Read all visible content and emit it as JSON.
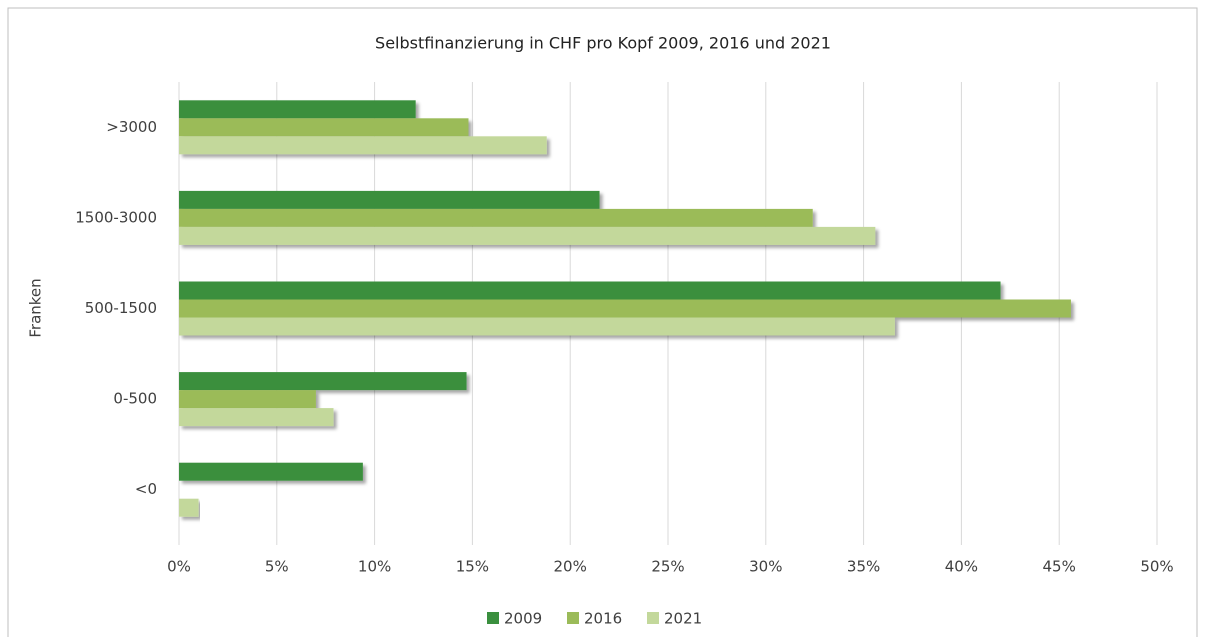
{
  "chart_data": {
    "type": "barh",
    "title": "Selbstfinanzierung in CHF pro Kopf 2009, 2016 und 2021",
    "y_label": "Franken",
    "categories": [
      ">3000",
      "1500-3000",
      "500-1500",
      "0-500",
      "<0"
    ],
    "series": [
      {
        "name": "2009",
        "color": "#3a8f3e",
        "values": [
          12.1,
          21.5,
          42.0,
          14.7,
          9.4
        ]
      },
      {
        "name": "2016",
        "color": "#9bbb59",
        "values": [
          14.8,
          32.4,
          45.6,
          7.0,
          0
        ]
      },
      {
        "name": "2021",
        "color": "#c3d89b",
        "values": [
          18.8,
          35.6,
          36.6,
          7.9,
          1.0
        ]
      }
    ],
    "xlim": [
      0,
      50
    ],
    "xticks": [
      {
        "value": 0,
        "label": "0%"
      },
      {
        "value": 5,
        "label": "5%"
      },
      {
        "value": 10,
        "label": "10%"
      },
      {
        "value": 15,
        "label": "15%"
      },
      {
        "value": 20,
        "label": "20%"
      },
      {
        "value": 25,
        "label": "25%"
      },
      {
        "value": 30,
        "label": "30%"
      },
      {
        "value": 35,
        "label": "35%"
      },
      {
        "value": 40,
        "label": "40%"
      },
      {
        "value": 45,
        "label": "45%"
      },
      {
        "value": 50,
        "label": "50%"
      }
    ],
    "grid": true,
    "legend": "bottom"
  }
}
